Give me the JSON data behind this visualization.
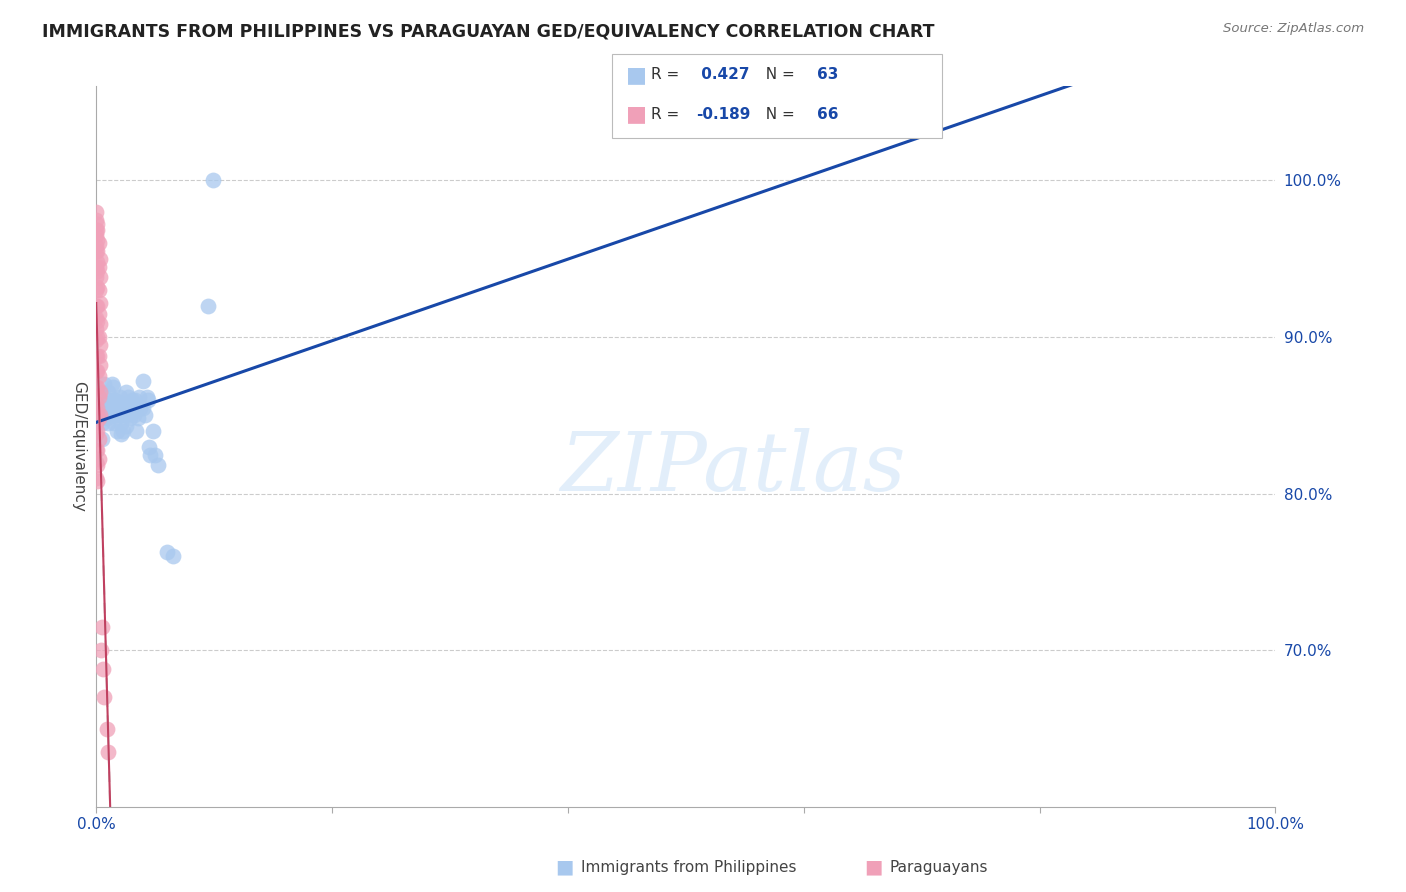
{
  "title": "IMMIGRANTS FROM PHILIPPINES VS PARAGUAYAN GED/EQUIVALENCY CORRELATION CHART",
  "source": "Source: ZipAtlas.com",
  "ylabel": "GED/Equivalency",
  "watermark": "ZIPatlas",
  "legend_bottom_blue": "Immigrants from Philippines",
  "legend_bottom_pink": "Paraguayans",
  "blue_color": "#A8C8EE",
  "pink_color": "#F0A0B8",
  "blue_line_color": "#1848A8",
  "pink_line_color": "#C04060",
  "pink_line_dash_color": "#CCCCCC",
  "ytick_values": [
    0.7,
    0.8,
    0.9,
    1.0
  ],
  "ytick_labels": [
    "70.0%",
    "80.0%",
    "90.0%",
    "100.0%"
  ],
  "xlim": [
    0.0,
    1.0
  ],
  "ylim": [
    0.6,
    1.06
  ],
  "blue_r": 0.427,
  "blue_n": 63,
  "pink_r": -0.189,
  "pink_n": 66,
  "blue_scatter_x": [
    0.0,
    0.005,
    0.005,
    0.005,
    0.007,
    0.007,
    0.007,
    0.008,
    0.008,
    0.009,
    0.01,
    0.01,
    0.012,
    0.013,
    0.013,
    0.014,
    0.014,
    0.015,
    0.015,
    0.016,
    0.016,
    0.017,
    0.018,
    0.018,
    0.019,
    0.02,
    0.02,
    0.021,
    0.021,
    0.022,
    0.023,
    0.023,
    0.025,
    0.025,
    0.025,
    0.026,
    0.027,
    0.028,
    0.029,
    0.03,
    0.03,
    0.031,
    0.032,
    0.033,
    0.034,
    0.034,
    0.035,
    0.036,
    0.037,
    0.04,
    0.04,
    0.041,
    0.043,
    0.044,
    0.045,
    0.046,
    0.048,
    0.05,
    0.052,
    0.06,
    0.065,
    0.095,
    0.099
  ],
  "blue_scatter_y": [
    0.853,
    0.853,
    0.835,
    0.845,
    0.87,
    0.855,
    0.862,
    0.858,
    0.85,
    0.848,
    0.865,
    0.845,
    0.852,
    0.87,
    0.855,
    0.868,
    0.856,
    0.86,
    0.845,
    0.86,
    0.85,
    0.855,
    0.858,
    0.84,
    0.858,
    0.862,
    0.85,
    0.845,
    0.838,
    0.858,
    0.855,
    0.84,
    0.865,
    0.85,
    0.843,
    0.858,
    0.862,
    0.855,
    0.848,
    0.86,
    0.852,
    0.858,
    0.85,
    0.86,
    0.855,
    0.84,
    0.848,
    0.862,
    0.855,
    0.872,
    0.855,
    0.85,
    0.862,
    0.86,
    0.83,
    0.825,
    0.84,
    0.825,
    0.818,
    0.763,
    0.76,
    0.92,
    1.0
  ],
  "pink_scatter_x": [
    0.0,
    0.0,
    0.0,
    0.0,
    0.0,
    0.0,
    0.0,
    0.0,
    0.0,
    0.0,
    0.0,
    0.0,
    0.0,
    0.0,
    0.0,
    0.0,
    0.0,
    0.0,
    0.0,
    0.0,
    0.001,
    0.001,
    0.001,
    0.001,
    0.001,
    0.001,
    0.001,
    0.001,
    0.001,
    0.001,
    0.001,
    0.001,
    0.001,
    0.001,
    0.001,
    0.002,
    0.002,
    0.002,
    0.002,
    0.002,
    0.002,
    0.002,
    0.002,
    0.002,
    0.002,
    0.002,
    0.003,
    0.003,
    0.003,
    0.003,
    0.003,
    0.003,
    0.003,
    0.003,
    0.004,
    0.005,
    0.006,
    0.007,
    0.009,
    0.01,
    0.0,
    0.001,
    0.0,
    0.0,
    0.001,
    0.001
  ],
  "pink_scatter_y": [
    0.98,
    0.965,
    0.955,
    0.945,
    0.938,
    0.93,
    0.92,
    0.912,
    0.905,
    0.898,
    0.888,
    0.878,
    0.868,
    0.858,
    0.852,
    0.845,
    0.838,
    0.828,
    0.82,
    0.81,
    0.968,
    0.955,
    0.942,
    0.932,
    0.92,
    0.91,
    0.9,
    0.888,
    0.878,
    0.868,
    0.855,
    0.84,
    0.828,
    0.818,
    0.808,
    0.96,
    0.945,
    0.93,
    0.915,
    0.9,
    0.888,
    0.875,
    0.862,
    0.848,
    0.835,
    0.822,
    0.95,
    0.938,
    0.922,
    0.908,
    0.895,
    0.882,
    0.865,
    0.85,
    0.7,
    0.715,
    0.688,
    0.67,
    0.65,
    0.635,
    0.968,
    0.962,
    0.958,
    0.975,
    0.972,
    0.948
  ]
}
